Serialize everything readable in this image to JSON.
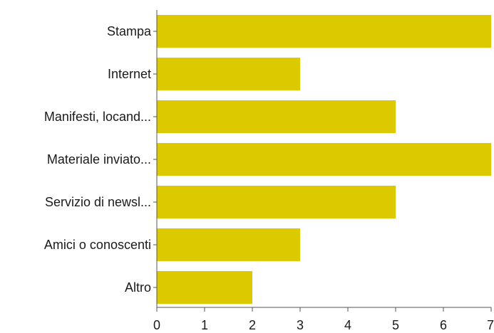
{
  "chart_data": {
    "type": "bar",
    "orientation": "horizontal",
    "categories": [
      "Stampa",
      "Internet",
      "Manifesti, locand...",
      "Materiale inviato...",
      "Servizio di newsl...",
      "Amici o conoscenti",
      "Altro"
    ],
    "values": [
      7,
      3,
      5,
      7,
      5,
      3,
      2
    ],
    "xlim": [
      0,
      7
    ],
    "xticks": [
      "0",
      "1",
      "2",
      "3",
      "4",
      "5",
      "6",
      "7"
    ],
    "grid": false,
    "legend": "none",
    "colors": {
      "bar": "#dcc900",
      "axis": "#555555",
      "text": "#1a1a1a"
    }
  }
}
